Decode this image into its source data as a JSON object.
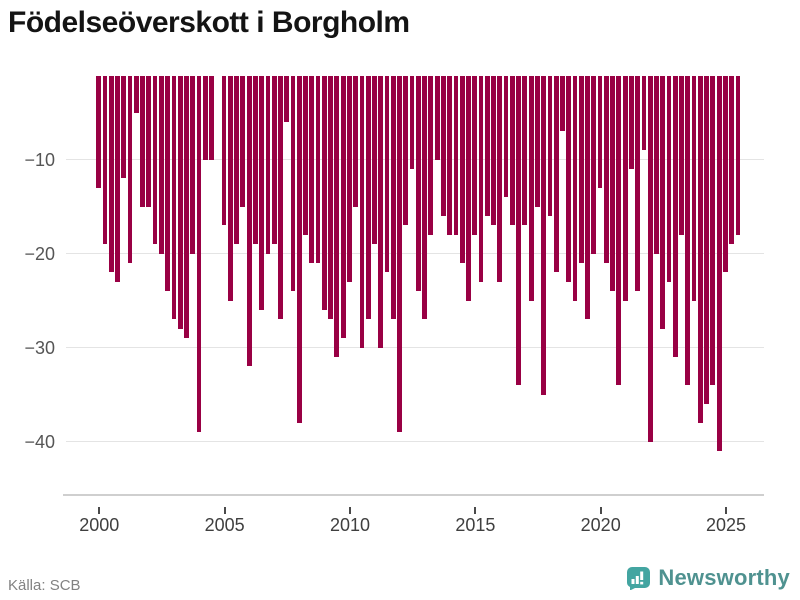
{
  "title": "Födelseöverskott i Borgholm",
  "source": "Källa: SCB",
  "branding": {
    "name": "Newsworthy",
    "icon": "newsworthy-bar-chart-speech-bubble",
    "icon_color": "#43a5a1",
    "text_color": "#4f9290"
  },
  "chart_data": {
    "type": "bar",
    "title": "Födelseöverskott i Borgholm",
    "frequency": "quarterly",
    "start_period": "2000Q1",
    "end_period": "2025Q3",
    "bar_color": "#990044",
    "grid": true,
    "legend": false,
    "ylim": [
      -46,
      -1.1
    ],
    "yticks": [
      -10,
      -20,
      -30,
      -40
    ],
    "ytick_labels": [
      "−10",
      "−20",
      "−30",
      "−40"
    ],
    "xticks": [
      2000,
      2005,
      2010,
      2015,
      2020,
      2025
    ],
    "xtick_labels": [
      "2000",
      "2005",
      "2010",
      "2015",
      "2020",
      "2025"
    ],
    "values": [
      -13,
      -19,
      -22,
      -23,
      -12,
      -21,
      -5,
      -15,
      -15,
      -19,
      -20,
      -24,
      -27,
      -28,
      -29,
      -20,
      -39,
      -10,
      -10,
      -1,
      -17,
      -25,
      -19,
      -15,
      -32,
      -19,
      -26,
      -20,
      -19,
      -27,
      -6,
      -24,
      -38,
      -18,
      -21,
      -21,
      -26,
      -27,
      -31,
      -29,
      -23,
      -15,
      -30,
      -27,
      -19,
      -30,
      -22,
      -27,
      -39,
      -17,
      -11,
      -24,
      -27,
      -18,
      -10,
      -16,
      -18,
      -18,
      -21,
      -25,
      -18,
      -23,
      -16,
      -17,
      -23,
      -14,
      -17,
      -34,
      -17,
      -25,
      -15,
      -35,
      -16,
      -22,
      -7,
      -23,
      -25,
      -21,
      -27,
      -20,
      -13,
      -21,
      -24,
      -34,
      -25,
      -11,
      -24,
      -9,
      -40,
      -20,
      -28,
      -23,
      -31,
      -18,
      -34,
      -25,
      -38,
      -36,
      -34,
      -41,
      -22,
      -19,
      -18
    ]
  }
}
